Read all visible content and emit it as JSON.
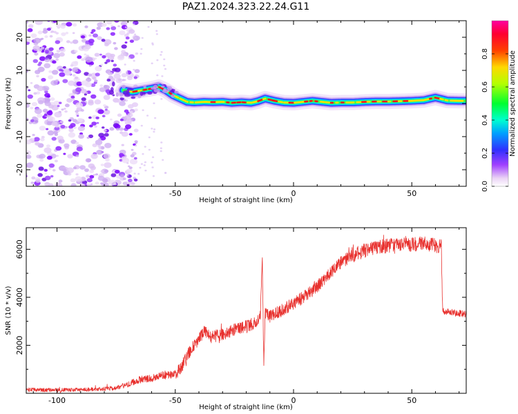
{
  "title": "PAZ1.2024.323.22.24.G11",
  "colors": {
    "snr_line": "#e8312e",
    "blob": "#7a00ff",
    "frame": "#000000"
  },
  "chart_data": [
    {
      "type": "heatmap",
      "xlabel": "Height of straight line (km)",
      "ylabel": "Frequency (Hz)",
      "xlim": [
        -113,
        73
      ],
      "ylim": [
        -25,
        25
      ],
      "x_ticks": [
        -100,
        -50,
        0,
        50
      ],
      "y_ticks": [
        -20,
        -10,
        0,
        10,
        20
      ],
      "x_tick_labels": [
        "-100",
        "-50",
        "0",
        "50"
      ],
      "y_tick_labels": [
        "-20",
        "-10",
        "0",
        "10",
        "20"
      ],
      "colorbar": {
        "label": "Normalized spectral amplitude",
        "range": [
          0,
          1
        ],
        "ticks": [
          0.0,
          0.2,
          0.4,
          0.6,
          0.8
        ],
        "tick_labels": [
          "0.0",
          "0.2",
          "0.4",
          "0.6",
          "0.8"
        ],
        "colormap": "rainbow (white-violet-blue-cyan-green-yellow-red-magenta)"
      },
      "noise_region_x": [
        -113,
        -72
      ],
      "ridge": {
        "x": [
          -72,
          -68,
          -64,
          -60,
          -57,
          -54,
          -51,
          -48,
          -45,
          -42,
          -38,
          -34,
          -30,
          -26,
          -22,
          -18,
          -15,
          -12,
          -8,
          -4,
          0,
          4,
          8,
          12,
          16,
          20,
          25,
          30,
          35,
          40,
          45,
          50,
          55,
          60,
          65,
          70,
          73
        ],
        "freq": [
          4,
          3.5,
          4,
          4.5,
          5,
          4,
          2.5,
          1.5,
          0.5,
          0.3,
          0.5,
          0.4,
          0.5,
          0.2,
          0.4,
          0.2,
          0.7,
          1.5,
          0.8,
          0.3,
          0.2,
          0.5,
          0.8,
          0.5,
          0.2,
          0.3,
          0.3,
          0.5,
          0.6,
          0.6,
          0.7,
          0.8,
          1.0,
          1.8,
          0.9,
          0.8,
          0.8
        ]
      }
    },
    {
      "type": "line",
      "xlabel": "Height of straight line (km)",
      "ylabel": "SNR (10 * v/v)",
      "xlim": [
        -113,
        73
      ],
      "ylim": [
        0,
        6900
      ],
      "x_ticks": [
        -100,
        -50,
        0,
        50
      ],
      "y_ticks": [
        2000,
        4000,
        6000
      ],
      "x_tick_labels": [
        "-100",
        "-50",
        "0",
        "50"
      ],
      "y_tick_labels": [
        "2000",
        "4000",
        "6000"
      ],
      "series": [
        {
          "x": [
            -113,
            -100,
            -90,
            -80,
            -75,
            -70,
            -65,
            -60,
            -55,
            -50,
            -47,
            -45,
            -43,
            -40,
            -38,
            -35,
            -30,
            -25,
            -20,
            -16,
            -14,
            -13.2,
            -12.6,
            -12,
            -10,
            -5,
            0,
            5,
            10,
            15,
            20,
            25,
            30,
            35,
            40,
            45,
            50,
            55,
            60,
            62.5,
            63,
            64,
            68,
            73
          ],
          "snr": [
            150,
            130,
            150,
            180,
            230,
            370,
            580,
            620,
            760,
            780,
            1150,
            1550,
            1850,
            2250,
            2600,
            2350,
            2450,
            2650,
            2800,
            2950,
            3300,
            5700,
            1200,
            3300,
            3200,
            3450,
            3750,
            4050,
            4450,
            4950,
            5450,
            5750,
            5950,
            6100,
            6150,
            6200,
            6200,
            6250,
            6150,
            6150,
            3500,
            3400,
            3350,
            3300
          ]
        }
      ]
    }
  ]
}
